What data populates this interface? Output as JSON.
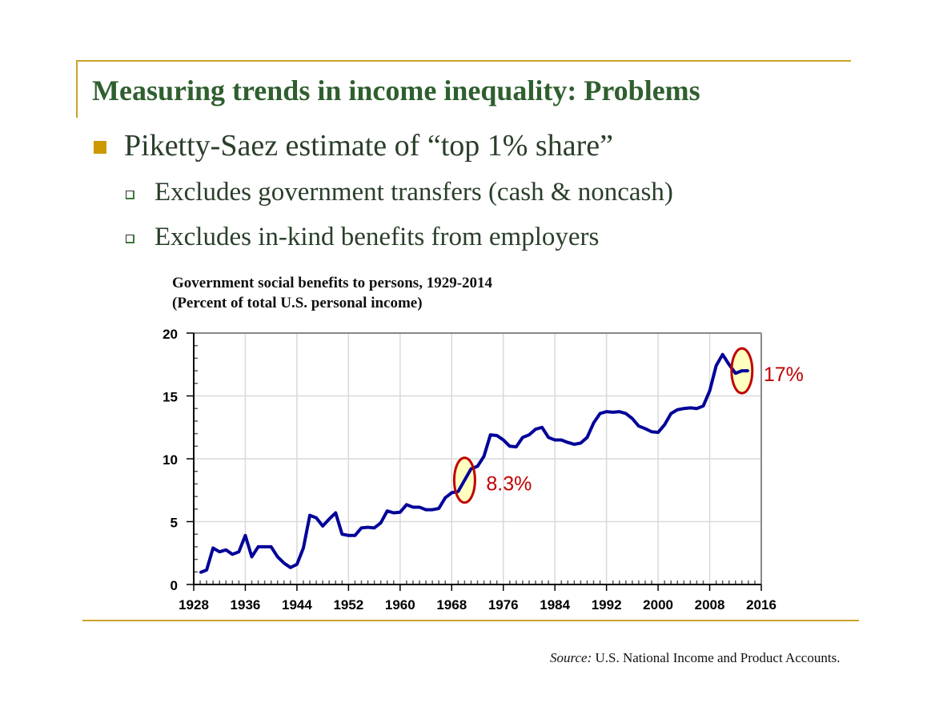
{
  "slide": {
    "title": "Measuring trends in income inequality: Problems",
    "bullet": "Piketty-Saez estimate of “top 1% share”",
    "sub_bullets": [
      "Excludes government transfers (cash & noncash)",
      "Excludes in-kind benefits from employers"
    ],
    "source_label": "Source:",
    "source_text": " U.S. National Income and Product Accounts.",
    "colors": {
      "title": "#2F5F2F",
      "accent": "#C9A227",
      "line": "#000099",
      "annotation": "#C00000"
    }
  },
  "chart_data": {
    "type": "line",
    "title": "Government social benefits to persons, 1929-2014",
    "subtitle": "(Percent of  total U.S. personal income)",
    "xlabel": "",
    "ylabel": "",
    "xlim": [
      1928,
      2016
    ],
    "ylim": [
      0,
      20
    ],
    "x_ticks": [
      "1928",
      "1936",
      "1944",
      "1952",
      "1960",
      "1968",
      "1976",
      "1984",
      "1992",
      "2000",
      "2008",
      "2016"
    ],
    "y_ticks": [
      "0",
      "5",
      "10",
      "15",
      "20"
    ],
    "grid": true,
    "legend": "none",
    "x": [
      1929,
      1930,
      1931,
      1932,
      1933,
      1934,
      1935,
      1936,
      1937,
      1938,
      1939,
      1940,
      1941,
      1942,
      1943,
      1944,
      1945,
      1946,
      1947,
      1948,
      1949,
      1950,
      1951,
      1952,
      1953,
      1954,
      1955,
      1956,
      1957,
      1958,
      1959,
      1960,
      1961,
      1962,
      1963,
      1964,
      1965,
      1966,
      1967,
      1968,
      1969,
      1970,
      1971,
      1972,
      1973,
      1974,
      1975,
      1976,
      1977,
      1978,
      1979,
      1980,
      1981,
      1982,
      1983,
      1984,
      1985,
      1986,
      1987,
      1988,
      1989,
      1990,
      1991,
      1992,
      1993,
      1994,
      1995,
      1996,
      1997,
      1998,
      1999,
      2000,
      2001,
      2002,
      2003,
      2004,
      2005,
      2006,
      2007,
      2008,
      2009,
      2010,
      2011,
      2012,
      2013,
      2014
    ],
    "values": [
      0.95,
      1.15,
      2.9,
      2.6,
      2.75,
      2.4,
      2.6,
      3.9,
      2.2,
      3.0,
      3.0,
      3.0,
      2.2,
      1.7,
      1.35,
      1.6,
      2.9,
      5.5,
      5.3,
      4.65,
      5.2,
      5.7,
      4.0,
      3.9,
      3.9,
      4.5,
      4.55,
      4.5,
      4.9,
      5.85,
      5.7,
      5.75,
      6.35,
      6.15,
      6.15,
      5.95,
      5.95,
      6.05,
      6.9,
      7.3,
      7.4,
      8.3,
      9.2,
      9.4,
      10.2,
      11.9,
      11.85,
      11.5,
      11.0,
      10.95,
      11.7,
      11.9,
      12.35,
      12.5,
      11.7,
      11.5,
      11.5,
      11.3,
      11.15,
      11.25,
      11.7,
      12.85,
      13.6,
      13.75,
      13.7,
      13.75,
      13.6,
      13.2,
      12.6,
      12.4,
      12.15,
      12.1,
      12.7,
      13.6,
      13.9,
      14.0,
      14.05,
      14.0,
      14.2,
      15.4,
      17.4,
      18.3,
      17.5,
      16.8,
      17.0,
      17.0
    ],
    "annotations": [
      {
        "label": "8.3%",
        "year_from": 1969,
        "year_to": 1971,
        "value": 8.3
      },
      {
        "label": "17%",
        "year_from": 2012,
        "year_to": 2014,
        "value": 17
      }
    ]
  }
}
